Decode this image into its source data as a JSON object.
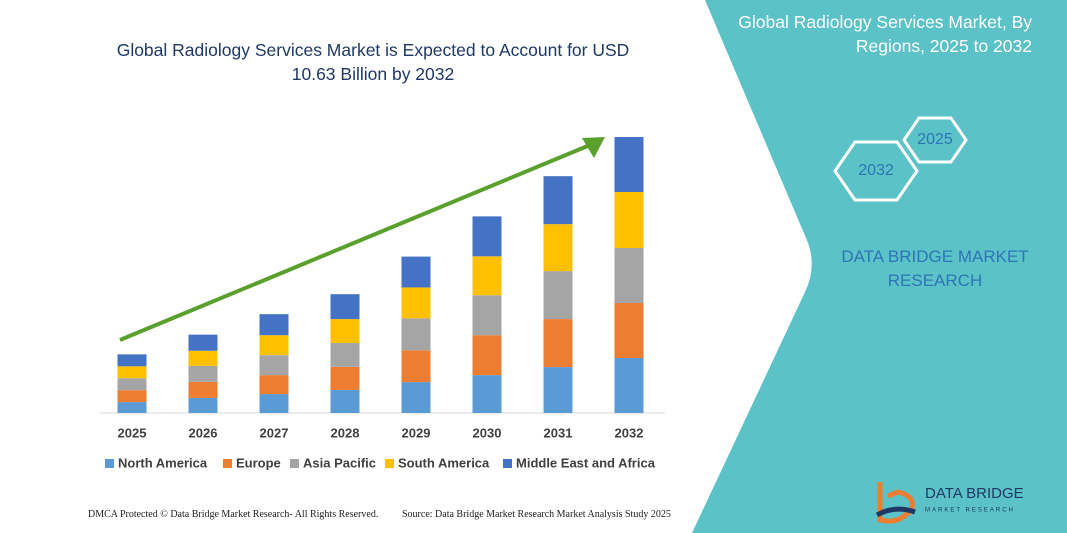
{
  "chart_data": {
    "type": "stacked-bar",
    "title": "Global Radiology Services Market is Expected to Account for USD 10.63 Billion by 2032",
    "categories": [
      "2025",
      "2026",
      "2027",
      "2028",
      "2029",
      "2030",
      "2031",
      "2032"
    ],
    "series": [
      {
        "name": "North America",
        "color": "#5b9bd5",
        "values": [
          0.42,
          0.58,
          0.73,
          0.89,
          1.19,
          1.46,
          1.77,
          2.12
        ]
      },
      {
        "name": "Europe",
        "color": "#ed7d31",
        "values": [
          0.46,
          0.62,
          0.73,
          0.89,
          1.23,
          1.54,
          1.85,
          2.12
        ]
      },
      {
        "name": "Asia Pacific",
        "color": "#a5a5a5",
        "values": [
          0.46,
          0.62,
          0.77,
          0.92,
          1.23,
          1.54,
          1.85,
          2.12
        ]
      },
      {
        "name": "South America",
        "color": "#ffc000",
        "values": [
          0.46,
          0.58,
          0.77,
          0.92,
          1.19,
          1.5,
          1.81,
          2.16
        ]
      },
      {
        "name": "Middle East and Africa",
        "color": "#4472c4",
        "values": [
          0.46,
          0.62,
          0.81,
          0.96,
          1.19,
          1.54,
          1.85,
          2.12
        ]
      }
    ]
  },
  "panel": {
    "title": "Global Radiology Services Market, By Regions, 2025 to 2032",
    "hexagons": [
      "2025",
      "2032"
    ],
    "brand": "DATA BRIDGE MARKET RESEARCH"
  },
  "logo": {
    "name": "DATA BRIDGE",
    "tagline": "MARKET RESEARCH"
  },
  "footer": {
    "left": "DMCA Protected © Data Bridge Market Research- All Rights Reserved.",
    "right": "Source: Data Bridge Market Research Market Analysis Study 2025"
  }
}
